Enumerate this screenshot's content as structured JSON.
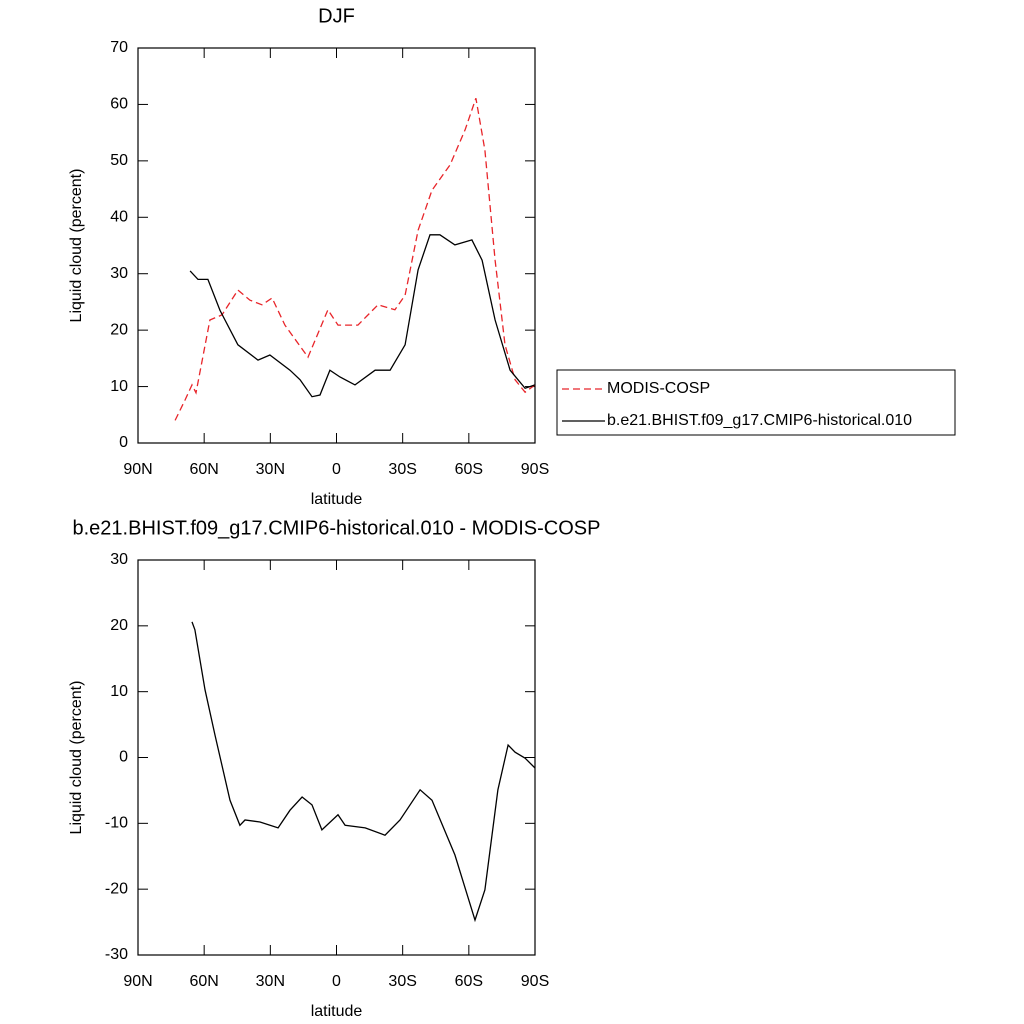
{
  "chart_data": [
    {
      "type": "line",
      "title": "DJF",
      "x_label": "latitude",
      "y_label": "Liquid cloud (percent)",
      "xlim": [
        90,
        -90
      ],
      "xticks": [
        {
          "value": 90,
          "label": "90N"
        },
        {
          "value": 60,
          "label": "60N"
        },
        {
          "value": 30,
          "label": "30N"
        },
        0,
        {
          "value": -30,
          "label": "30S"
        },
        {
          "value": -60,
          "label": "60S"
        },
        {
          "value": -90,
          "label": "90S"
        }
      ],
      "ylim": [
        0,
        70
      ],
      "yticks": [
        0,
        10,
        20,
        30,
        40,
        50,
        60,
        70
      ],
      "legend": "right",
      "series": [
        {
          "name": "MODIS-COSP",
          "color": "#e8252a",
          "linestyle": "dashed",
          "x": [
            73.2,
            68.7,
            65.5,
            63.7,
            57.4,
            51.9,
            44.7,
            39.2,
            33.8,
            29.2,
            23.4,
            12.9,
            3.9,
            -0.7,
            -9.7,
            -18.8,
            -26.5,
            -31.1,
            -37,
            -43.3,
            -51.5,
            -58.3,
            -63.2,
            -67.3,
            -71.9,
            -76.4,
            -81,
            -85.5,
            -90
          ],
          "values": [
            4,
            7.6,
            10.3,
            8.9,
            21.8,
            22.7,
            27.1,
            25.3,
            24.5,
            25.7,
            20.9,
            15.2,
            23.6,
            20.9,
            20.9,
            24.5,
            23.6,
            26.2,
            37.7,
            44.8,
            49.3,
            55.5,
            61.1,
            51.9,
            32.4,
            17.4,
            11.2,
            9,
            10.3
          ]
        },
        {
          "name": "b.e21.BHIST.f09_g17.CMIP6-historical.010",
          "color": "#000000",
          "linestyle": "solid",
          "x": [
            66.4,
            62.8,
            58.3,
            52.8,
            44.7,
            35.6,
            30.2,
            21.1,
            16.5,
            11.1,
            7.5,
            3,
            -1.6,
            -8.4,
            -17.5,
            -24.3,
            -31.1,
            -37,
            -42.4,
            -46.9,
            -53.7,
            -61.4,
            -66,
            -71.9,
            -78.7,
            -85.5,
            -90
          ],
          "values": [
            30.5,
            29,
            29,
            23.5,
            17.4,
            14.7,
            15.6,
            12.9,
            11.2,
            8.2,
            8.5,
            12.9,
            11.7,
            10.3,
            12.9,
            12.9,
            17.4,
            30.7,
            36.9,
            36.9,
            35.1,
            36,
            32.4,
            21.8,
            12.9,
            9.7,
            10.3
          ]
        }
      ]
    },
    {
      "type": "line",
      "title": "b.e21.BHIST.f09_g17.CMIP6-historical.010 - MODIS-COSP",
      "x_label": "latitude",
      "y_label": "Liquid cloud (percent)",
      "xlim": [
        90,
        -90
      ],
      "xticks": [
        {
          "value": 90,
          "label": "90N"
        },
        {
          "value": 60,
          "label": "60N"
        },
        {
          "value": 30,
          "label": "30N"
        },
        0,
        {
          "value": -30,
          "label": "30S"
        },
        {
          "value": -60,
          "label": "60S"
        },
        {
          "value": -90,
          "label": "90S"
        }
      ],
      "ylim": [
        -30,
        30
      ],
      "yticks": [
        -30,
        -20,
        -10,
        0,
        10,
        20,
        30
      ],
      "series": [
        {
          "color": "#000000",
          "linestyle": "solid",
          "x": [
            65.5,
            64.2,
            59.6,
            55.1,
            48.3,
            43.8,
            41.5,
            34.7,
            26.5,
            21.1,
            15.6,
            11.1,
            6.6,
            -0.7,
            -3.9,
            -13,
            -22,
            -28.8,
            -37.9,
            -43.3,
            -53.7,
            -62.8,
            -67.3,
            -73.2,
            -77.8,
            -81,
            -85.5,
            -90
          ],
          "values": [
            20.6,
            19.4,
            10.3,
            3.4,
            -6.5,
            -10.3,
            -9.5,
            -9.8,
            -10.7,
            -8,
            -6,
            -7.2,
            -11,
            -8.7,
            -10.3,
            -10.7,
            -11.8,
            -9.5,
            -4.9,
            -6.5,
            -14.8,
            -24.7,
            -20.1,
            -4.9,
            1.9,
            0.8,
            -0.1,
            -1.6
          ]
        }
      ]
    }
  ]
}
